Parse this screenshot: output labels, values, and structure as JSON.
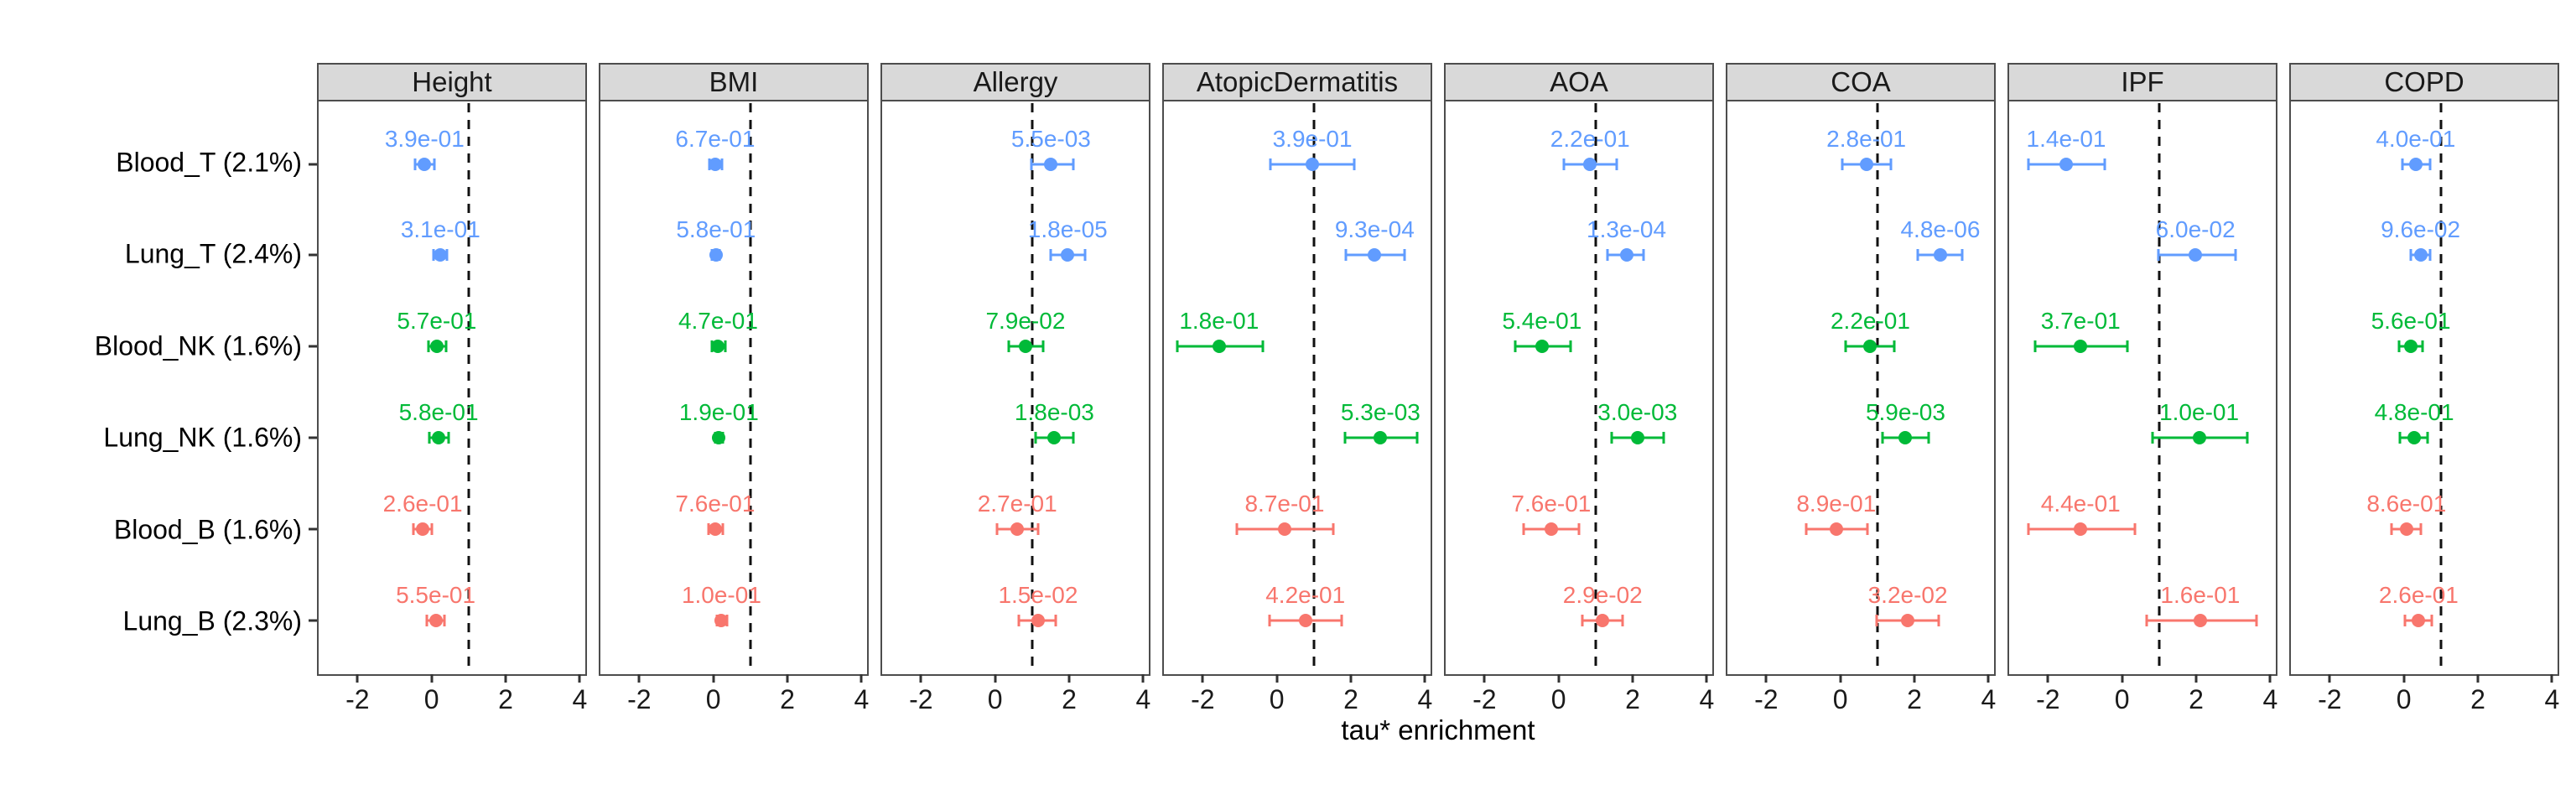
{
  "figure": {
    "xlabel": "tau* enrichment"
  },
  "chart_data": {
    "type": "scatter",
    "subtype": "forest-dot-whisker-faceted",
    "xlabel": "tau* enrichment",
    "x_ticks": [
      -2,
      0,
      2,
      4
    ],
    "x_range": [
      -3.05,
      4.15
    ],
    "ref_line_x": 1,
    "grid": false,
    "legend": false,
    "categories": [
      "Blood_T (2.1%)",
      "Lung_T (2.4%)",
      "Blood_NK (1.6%)",
      "Lung_NK (1.6%)",
      "Blood_B (1.6%)",
      "Lung_B (2.3%)"
    ],
    "row_colors": [
      "#619CFF",
      "#619CFF",
      "#00BA38",
      "#00BA38",
      "#F8766D",
      "#F8766D"
    ],
    "color_legend": {
      "T_cells": "#619CFF",
      "NK_cells": "#00BA38",
      "B_cells": "#F8766D"
    },
    "strip_fill": "#d9d9d9",
    "panels": [
      {
        "label": "Height",
        "points": [
          {
            "row": "Blood_T (2.1%)",
            "estimate": -0.19,
            "ci_low": -0.45,
            "ci_high": 0.08,
            "p_label": "3.9e-01"
          },
          {
            "row": "Lung_T (2.4%)",
            "estimate": 0.24,
            "ci_low": 0.05,
            "ci_high": 0.42,
            "p_label": "3.1e-01"
          },
          {
            "row": "Blood_NK (1.6%)",
            "estimate": 0.14,
            "ci_low": -0.09,
            "ci_high": 0.4,
            "p_label": "5.7e-01"
          },
          {
            "row": "Lung_NK (1.6%)",
            "estimate": 0.19,
            "ci_low": -0.07,
            "ci_high": 0.46,
            "p_label": "5.8e-01"
          },
          {
            "row": "Blood_B (1.6%)",
            "estimate": -0.24,
            "ci_low": -0.5,
            "ci_high": 0.01,
            "p_label": "2.6e-01"
          },
          {
            "row": "Lung_B (2.3%)",
            "estimate": 0.11,
            "ci_low": -0.13,
            "ci_high": 0.35,
            "p_label": "5.5e-01"
          }
        ]
      },
      {
        "label": "BMI",
        "points": [
          {
            "row": "Blood_T (2.1%)",
            "estimate": 0.05,
            "ci_low": -0.11,
            "ci_high": 0.24,
            "p_label": "6.7e-01"
          },
          {
            "row": "Lung_T (2.4%)",
            "estimate": 0.07,
            "ci_low": -0.03,
            "ci_high": 0.17,
            "p_label": "5.8e-01"
          },
          {
            "row": "Blood_NK (1.6%)",
            "estimate": 0.13,
            "ci_low": -0.04,
            "ci_high": 0.32,
            "p_label": "4.7e-01"
          },
          {
            "row": "Lung_NK (1.6%)",
            "estimate": 0.15,
            "ci_low": 0.05,
            "ci_high": 0.25,
            "p_label": "1.9e-01"
          },
          {
            "row": "Blood_B (1.6%)",
            "estimate": 0.05,
            "ci_low": -0.14,
            "ci_high": 0.26,
            "p_label": "7.6e-01"
          },
          {
            "row": "Lung_B (2.3%)",
            "estimate": 0.22,
            "ci_low": 0.09,
            "ci_high": 0.36,
            "p_label": "1.0e-01"
          }
        ]
      },
      {
        "label": "Allergy",
        "points": [
          {
            "row": "Blood_T (2.1%)",
            "estimate": 1.51,
            "ci_low": 0.97,
            "ci_high": 2.11,
            "p_label": "5.5e-03"
          },
          {
            "row": "Lung_T (2.4%)",
            "estimate": 1.96,
            "ci_low": 1.51,
            "ci_high": 2.43,
            "p_label": "1.8e-05"
          },
          {
            "row": "Blood_NK (1.6%)",
            "estimate": 0.82,
            "ci_low": 0.37,
            "ci_high": 1.29,
            "p_label": "7.9e-02"
          },
          {
            "row": "Lung_NK (1.6%)",
            "estimate": 1.6,
            "ci_low": 1.1,
            "ci_high": 2.11,
            "p_label": "1.8e-03"
          },
          {
            "row": "Blood_B (1.6%)",
            "estimate": 0.6,
            "ci_low": 0.05,
            "ci_high": 1.15,
            "p_label": "2.7e-01"
          },
          {
            "row": "Lung_B (2.3%)",
            "estimate": 1.16,
            "ci_low": 0.65,
            "ci_high": 1.64,
            "p_label": "1.5e-02"
          }
        ]
      },
      {
        "label": "AtopicDermatitis",
        "points": [
          {
            "row": "Blood_T (2.1%)",
            "estimate": 0.96,
            "ci_low": -0.17,
            "ci_high": 2.09,
            "p_label": "3.9e-01"
          },
          {
            "row": "Lung_T (2.4%)",
            "estimate": 2.64,
            "ci_low": 1.87,
            "ci_high": 3.45,
            "p_label": "9.3e-04"
          },
          {
            "row": "Blood_NK (1.6%)",
            "estimate": -1.56,
            "ci_low": -2.69,
            "ci_high": -0.38,
            "p_label": "1.8e-01"
          },
          {
            "row": "Lung_NK (1.6%)",
            "estimate": 2.8,
            "ci_low": 1.83,
            "ci_high": 3.78,
            "p_label": "5.3e-03"
          },
          {
            "row": "Blood_B (1.6%)",
            "estimate": 0.21,
            "ci_low": -1.07,
            "ci_high": 1.53,
            "p_label": "8.7e-01"
          },
          {
            "row": "Lung_B (2.3%)",
            "estimate": 0.77,
            "ci_low": -0.2,
            "ci_high": 1.74,
            "p_label": "4.2e-01"
          }
        ]
      },
      {
        "label": "AOA",
        "points": [
          {
            "row": "Blood_T (2.1%)",
            "estimate": 0.85,
            "ci_low": 0.15,
            "ci_high": 1.56,
            "p_label": "2.2e-01"
          },
          {
            "row": "Lung_T (2.4%)",
            "estimate": 1.83,
            "ci_low": 1.33,
            "ci_high": 2.3,
            "p_label": "1.3e-04"
          },
          {
            "row": "Blood_NK (1.6%)",
            "estimate": -0.45,
            "ci_low": -1.18,
            "ci_high": 0.32,
            "p_label": "5.4e-01"
          },
          {
            "row": "Lung_NK (1.6%)",
            "estimate": 2.13,
            "ci_low": 1.43,
            "ci_high": 2.83,
            "p_label": "3.0e-03"
          },
          {
            "row": "Blood_B (1.6%)",
            "estimate": -0.2,
            "ci_low": -0.94,
            "ci_high": 0.54,
            "p_label": "7.6e-01"
          },
          {
            "row": "Lung_B (2.3%)",
            "estimate": 1.19,
            "ci_low": 0.64,
            "ci_high": 1.73,
            "p_label": "2.9e-02"
          }
        ]
      },
      {
        "label": "COA",
        "points": [
          {
            "row": "Blood_T (2.1%)",
            "estimate": 0.7,
            "ci_low": 0.05,
            "ci_high": 1.37,
            "p_label": "2.8e-01"
          },
          {
            "row": "Lung_T (2.4%)",
            "estimate": 2.7,
            "ci_low": 2.08,
            "ci_high": 3.28,
            "p_label": "4.8e-06"
          },
          {
            "row": "Blood_NK (1.6%)",
            "estimate": 0.81,
            "ci_low": 0.15,
            "ci_high": 1.45,
            "p_label": "2.2e-01"
          },
          {
            "row": "Lung_NK (1.6%)",
            "estimate": 1.76,
            "ci_low": 1.13,
            "ci_high": 2.38,
            "p_label": "5.9e-03"
          },
          {
            "row": "Blood_B (1.6%)",
            "estimate": -0.11,
            "ci_low": -0.93,
            "ci_high": 0.72,
            "p_label": "8.9e-01"
          },
          {
            "row": "Lung_B (2.3%)",
            "estimate": 1.82,
            "ci_low": 0.98,
            "ci_high": 2.66,
            "p_label": "3.2e-02"
          }
        ]
      },
      {
        "label": "IPF",
        "points": [
          {
            "row": "Blood_T (2.1%)",
            "estimate": -1.51,
            "ci_low": -2.52,
            "ci_high": -0.47,
            "p_label": "1.4e-01"
          },
          {
            "row": "Lung_T (2.4%)",
            "estimate": 1.98,
            "ci_low": 0.97,
            "ci_high": 3.06,
            "p_label": "6.0e-02"
          },
          {
            "row": "Blood_NK (1.6%)",
            "estimate": -1.12,
            "ci_low": -2.34,
            "ci_high": 0.15,
            "p_label": "3.7e-01"
          },
          {
            "row": "Lung_NK (1.6%)",
            "estimate": 2.08,
            "ci_low": 0.82,
            "ci_high": 3.37,
            "p_label": "1.0e-01"
          },
          {
            "row": "Blood_B (1.6%)",
            "estimate": -1.12,
            "ci_low": -2.52,
            "ci_high": 0.34,
            "p_label": "4.4e-01"
          },
          {
            "row": "Lung_B (2.3%)",
            "estimate": 2.11,
            "ci_low": 0.66,
            "ci_high": 3.62,
            "p_label": "1.6e-01"
          }
        ]
      },
      {
        "label": "COPD",
        "points": [
          {
            "row": "Blood_T (2.1%)",
            "estimate": 0.32,
            "ci_low": -0.04,
            "ci_high": 0.7,
            "p_label": "4.0e-01"
          },
          {
            "row": "Lung_T (2.4%)",
            "estimate": 0.45,
            "ci_low": 0.19,
            "ci_high": 0.71,
            "p_label": "9.6e-02"
          },
          {
            "row": "Blood_NK (1.6%)",
            "estimate": 0.19,
            "ci_low": -0.13,
            "ci_high": 0.5,
            "p_label": "5.6e-01"
          },
          {
            "row": "Lung_NK (1.6%)",
            "estimate": 0.28,
            "ci_low": -0.1,
            "ci_high": 0.64,
            "p_label": "4.8e-01"
          },
          {
            "row": "Blood_B (1.6%)",
            "estimate": 0.07,
            "ci_low": -0.33,
            "ci_high": 0.47,
            "p_label": "8.6e-01"
          },
          {
            "row": "Lung_B (2.3%)",
            "estimate": 0.4,
            "ci_low": 0.04,
            "ci_high": 0.75,
            "p_label": "2.6e-01"
          }
        ]
      }
    ]
  }
}
